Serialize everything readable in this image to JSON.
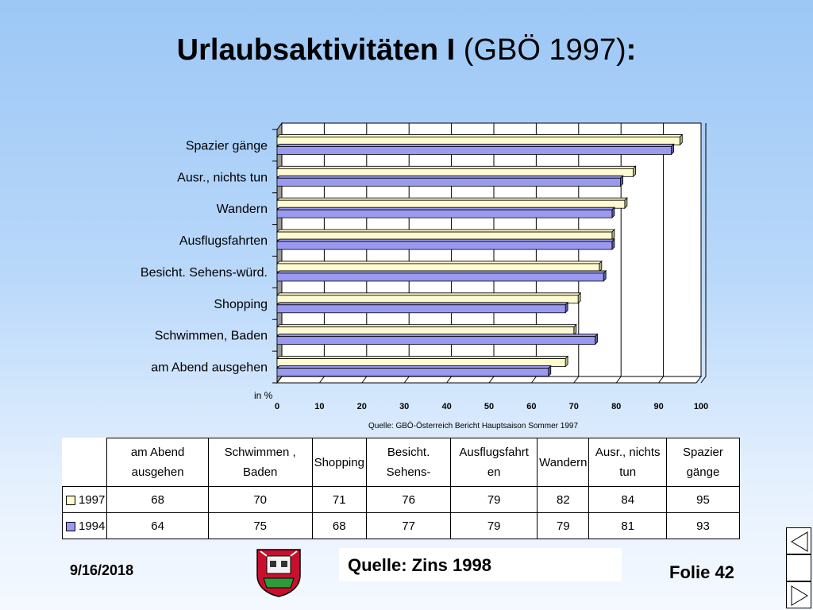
{
  "slide": {
    "title_bold": "Urlaubsaktivitäten I",
    "title_plain": " (GBÖ 1997)",
    "title_colon": ":",
    "date": "9/16/2018",
    "quelle": "Quelle: Zins 1998",
    "folie": "Folie 42"
  },
  "chart_data": {
    "type": "bar",
    "orientation": "horizontal",
    "categories": [
      "Spazier gänge",
      "Ausr., nichts tun",
      "Wandern",
      "Ausflugsfahrten",
      "Besicht. Sehens-würd.",
      "Shopping",
      "Schwimmen, Baden",
      "am Abend ausgehen"
    ],
    "series": [
      {
        "name": "1997",
        "values": [
          95,
          84,
          82,
          79,
          76,
          71,
          70,
          68
        ],
        "color": "#fffbd0"
      },
      {
        "name": "1994",
        "values": [
          93,
          81,
          79,
          79,
          77,
          68,
          75,
          64
        ],
        "color": "#9a9af0"
      }
    ],
    "xlim": [
      0,
      100
    ],
    "xticks": [
      "0",
      "10",
      "20",
      "30",
      "40",
      "50",
      "60",
      "70",
      "80",
      "90",
      "100"
    ],
    "xlabel": "in %",
    "source_note": "Quelle: GBÖ-Österreich Bericht Hauptsaison Sommer 1997",
    "grid": true
  },
  "table": {
    "headers": [
      "am Abend ausgehen",
      "Schwimmen , Baden",
      "Shopping",
      "Besicht. Sehens-",
      "Ausflugsfahrt en",
      "Wandern",
      "Ausr., nichts tun",
      "Spazier gänge"
    ],
    "rows": [
      {
        "label": "1997",
        "color": "#fffbd0",
        "values": [
          "68",
          "70",
          "71",
          "76",
          "79",
          "82",
          "84",
          "95"
        ]
      },
      {
        "label": "1994",
        "color": "#9a9af0",
        "values": [
          "64",
          "75",
          "68",
          "77",
          "79",
          "79",
          "81",
          "93"
        ]
      }
    ]
  },
  "nav": [
    "prev-slide-icon",
    "home-icon",
    "next-slide-icon"
  ]
}
